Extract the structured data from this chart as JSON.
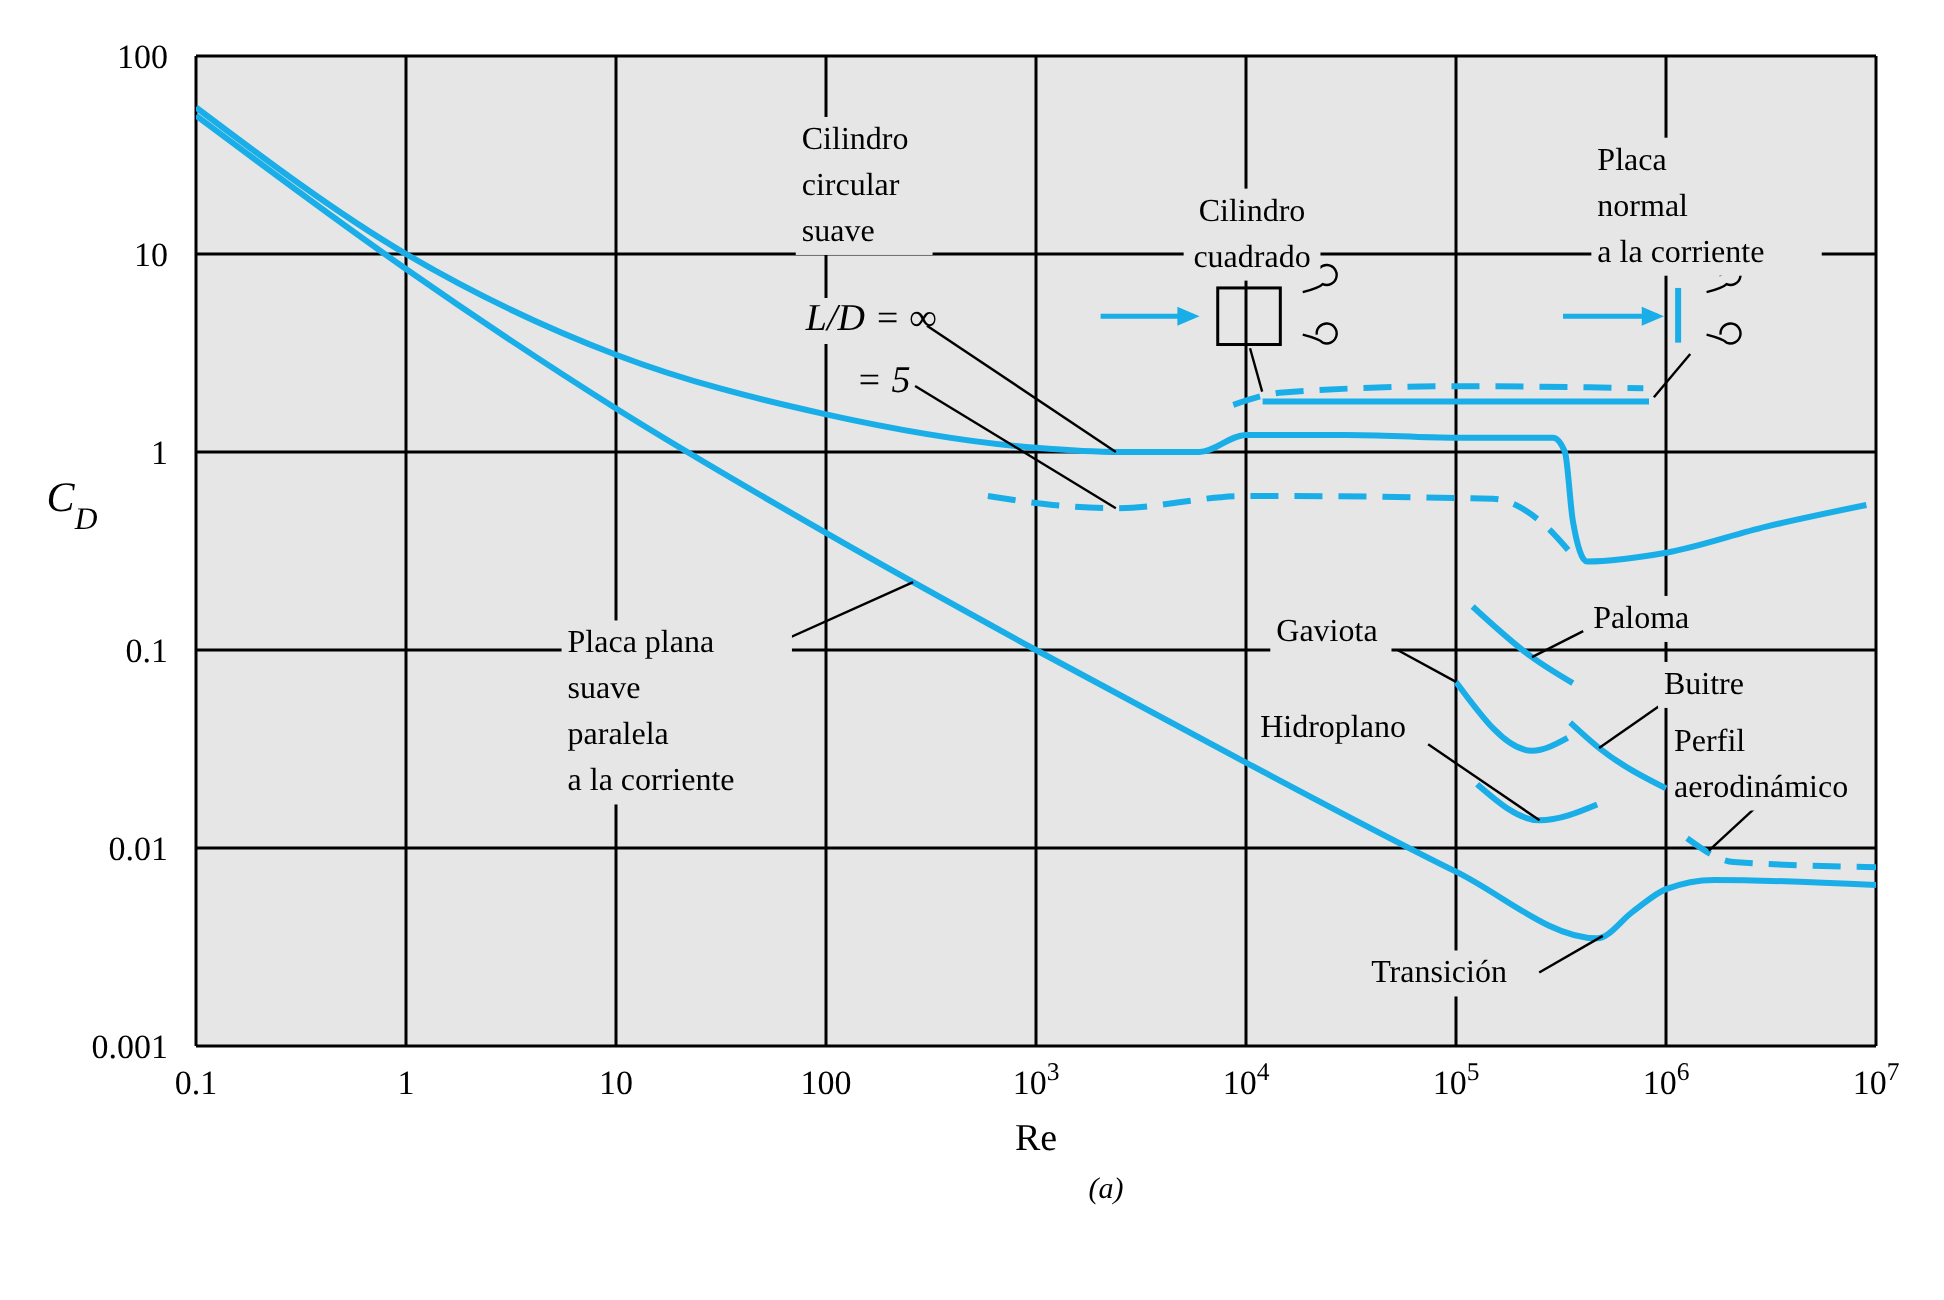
{
  "chart_data": {
    "type": "line",
    "xlabel": "Re",
    "ylabel": "C$_{D}$",
    "log": "xy",
    "grid": true,
    "marker": "none",
    "xlim": [
      0.1,
      10000000
    ],
    "ylim": [
      0.001,
      100
    ],
    "xticks": [
      0.1,
      1,
      10,
      100,
      {
        "value": 1000,
        "label": "10$^{3}$"
      },
      {
        "value": 10000,
        "label": "10$^{4}$"
      },
      {
        "value": 100000,
        "label": "10$^{5}$"
      },
      {
        "value": 1000000,
        "label": "10$^{6}$"
      },
      {
        "value": 10000000,
        "label": "10$^{7}$"
      }
    ],
    "yticks": [
      0.001,
      0.01,
      0.1,
      1,
      10,
      100
    ],
    "series": [
      {
        "color": "#1aaee8",
        "line_style": "solid",
        "x": [
          0.1,
          1,
          10,
          100,
          1000,
          2500,
          6000,
          10000,
          30000,
          100000,
          290000,
          330000,
          360000,
          420000,
          1000000,
          3000000,
          9000000
        ],
        "values": [
          55,
          10,
          3.1,
          1.55,
          1.05,
          1.0,
          1.0,
          1.22,
          1.22,
          1.18,
          1.18,
          1.0,
          0.45,
          0.28,
          0.31,
          0.42,
          0.54
        ]
      },
      {
        "color": "#1aaee8",
        "line_style": "dashed",
        "x": [
          590,
          1200,
          2400,
          10000,
          150000,
          250000,
          360000
        ],
        "values": [
          0.6,
          0.54,
          0.52,
          0.6,
          0.58,
          0.45,
          0.3
        ]
      },
      {
        "color": "#1aaee8",
        "line_style": "solid",
        "x": [
          0.1,
          1,
          10,
          100,
          1000,
          10000,
          100000,
          470000,
          700000,
          1000000,
          1700000,
          10000000
        ],
        "values": [
          50,
          8.4,
          1.66,
          0.39,
          0.1,
          0.027,
          0.0076,
          0.0035,
          0.0048,
          0.0062,
          0.0069,
          0.0065
        ]
      },
      {
        "color": "#1aaee8",
        "line_style": "dashed",
        "x": [
          8700,
          15000,
          100000,
          780000
        ],
        "values": [
          1.73,
          2.0,
          2.15,
          2.1
        ]
      },
      {
        "color": "#1aaee8",
        "line_style": "solid",
        "x": [
          12000,
          830000
        ],
        "values": [
          1.8,
          1.8
        ]
      },
      {
        "color": "#1aaee8",
        "line_style": "solid",
        "x": [
          120000,
          230000,
          360000
        ],
        "values": [
          0.166,
          0.092,
          0.068
        ]
      },
      {
        "color": "#1aaee8",
        "line_style": "solid",
        "x": [
          100000,
          230000,
          340000
        ],
        "values": [
          0.069,
          0.031,
          0.036
        ]
      },
      {
        "color": "#1aaee8",
        "line_style": "solid",
        "x": [
          350000,
          480000,
          1000000
        ],
        "values": [
          0.043,
          0.032,
          0.02
        ]
      },
      {
        "color": "#1aaee8",
        "line_style": "solid",
        "x": [
          126000,
          250000,
          470000
        ],
        "values": [
          0.021,
          0.0138,
          0.0166
        ]
      },
      {
        "color": "#1aaee8",
        "line_style": "dashed",
        "x": [
          1260000,
          2100000,
          10000000
        ],
        "values": [
          0.0112,
          0.0085,
          0.008
        ]
      }
    ],
    "annotations": [
      "Cilindro\ncircular\nsuave",
      {
        "text": "L/D = ∞",
        "x": 2400,
        "y": 1.0
      },
      {
        "text": "= 5",
        "x": 2400,
        "y": 0.52
      },
      "Cilindro\ncuadrado",
      "Placa\nnormal\na la corriente",
      {
        "text": "Placa plana\nsuave\nparalela\na la corriente",
        "x": 260,
        "y": 0.22
      },
      {
        "text": "Gaviota",
        "x": 100000,
        "y": 0.069
      },
      {
        "text": "Paloma",
        "x": 230000,
        "y": 0.092
      },
      {
        "text": "Buitre",
        "x": 480000,
        "y": 0.032
      },
      {
        "text": "Hidroplano",
        "x": 250000,
        "y": 0.0138
      },
      {
        "text": "Perfil\naerodinámico",
        "x": 1600000,
        "y": 0.0097
      },
      {
        "text": "Transición",
        "x": 500000,
        "y": 0.0036
      },
      "(a)"
    ]
  }
}
